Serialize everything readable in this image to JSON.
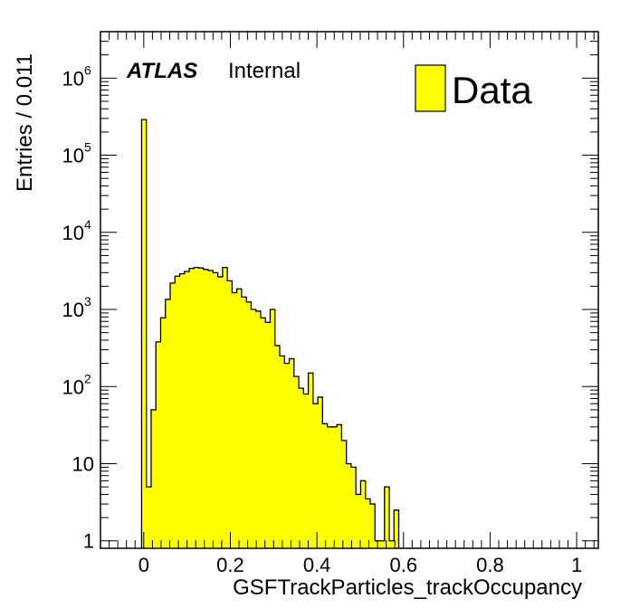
{
  "chart_data": {
    "type": "bar",
    "histogram": true,
    "x_edges_start": -0.005,
    "bin_width": 0.011,
    "values": [
      290000,
      5,
      50,
      380,
      780,
      1350,
      2200,
      2700,
      2900,
      3100,
      3400,
      3500,
      3450,
      3300,
      3200,
      3000,
      2650,
      3500,
      2350,
      1650,
      1850,
      1450,
      1250,
      1000,
      950,
      780,
      680,
      1000,
      340,
      250,
      200,
      230,
      135,
      95,
      80,
      150,
      60,
      73,
      33,
      30,
      30,
      32,
      20,
      10,
      9,
      4,
      6,
      3.5,
      3,
      1,
      1,
      5,
      1,
      2.5
    ],
    "xlabel": "GSFTrackParticles_trackOccupancy",
    "ylabel": "Entries / 0.011",
    "xlim": [
      -0.1,
      1.05
    ],
    "ylim": [
      0.8,
      4000000
    ],
    "y_scale": "log",
    "x_ticks": [
      "0",
      "0.2",
      "0.4",
      "0.6",
      "0.8",
      "1"
    ],
    "y_ticks": [
      {
        "value": 1,
        "base": "1",
        "exp": ""
      },
      {
        "value": 10,
        "base": "10",
        "exp": ""
      },
      {
        "value": 100,
        "base": "10",
        "exp": "2"
      },
      {
        "value": 1000,
        "base": "10",
        "exp": "3"
      },
      {
        "value": 10000,
        "base": "10",
        "exp": "4"
      },
      {
        "value": 100000,
        "base": "10",
        "exp": "5"
      },
      {
        "value": 1000000,
        "base": "10",
        "exp": "6"
      }
    ],
    "fill_color": "#ffff00",
    "line_color": "#000000",
    "legend": {
      "label": "Data",
      "position": "top-right"
    },
    "annotation": {
      "atlas": "ATLAS",
      "status": "Internal"
    }
  }
}
